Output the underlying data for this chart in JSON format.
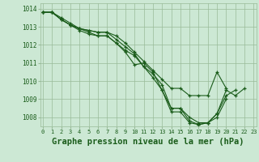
{
  "background_color": "#cce8d4",
  "grid_color": "#99bb99",
  "line_color": "#1a5c1a",
  "marker_color": "#1a5c1a",
  "xlabel": "Graphe pression niveau de la mer (hPa)",
  "xlabel_fontsize": 7.5,
  "xlim": [
    -0.3,
    23.3
  ],
  "ylim": [
    1007.5,
    1014.3
  ],
  "yticks": [
    1008,
    1009,
    1010,
    1011,
    1012,
    1013,
    1014
  ],
  "xticks": [
    0,
    1,
    2,
    3,
    4,
    5,
    6,
    7,
    8,
    9,
    10,
    11,
    12,
    13,
    14,
    15,
    16,
    17,
    18,
    19,
    20,
    21,
    22,
    23
  ],
  "series": [
    [
      1013.8,
      1013.8,
      1013.5,
      1013.2,
      1012.9,
      1012.7,
      1012.5,
      1012.5,
      1012.1,
      1011.6,
      1010.9,
      1011.0,
      1010.5,
      1009.5,
      1008.3,
      1008.3,
      1007.7,
      1007.6,
      1007.7,
      1008.2,
      1009.5,
      1009.2,
      1009.6,
      null
    ],
    [
      1013.8,
      1013.8,
      1013.4,
      1013.1,
      1012.8,
      1012.6,
      1012.5,
      1012.5,
      1012.1,
      1011.7,
      1011.4,
      1010.8,
      1010.4,
      1009.8,
      1008.5,
      1008.5,
      1007.8,
      1007.6,
      1007.7,
      1008.0,
      1009.0,
      null,
      null,
      null
    ],
    [
      1013.8,
      1013.8,
      1013.4,
      1013.1,
      1012.9,
      1012.8,
      1012.7,
      1012.7,
      1012.5,
      1012.1,
      1011.6,
      1011.1,
      1010.6,
      1010.1,
      1009.6,
      1009.6,
      1009.2,
      1009.2,
      1009.2,
      1010.5,
      1009.6,
      null,
      null,
      null
    ],
    [
      1013.8,
      1013.8,
      1013.4,
      1013.1,
      1012.9,
      1012.8,
      1012.7,
      1012.7,
      1012.3,
      1011.9,
      1011.5,
      1010.8,
      1010.2,
      1009.5,
      1008.5,
      1008.5,
      1008.0,
      1007.7,
      1007.7,
      1008.2,
      1009.2,
      1009.5,
      null,
      null
    ]
  ]
}
